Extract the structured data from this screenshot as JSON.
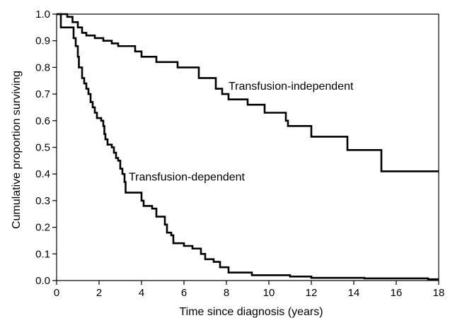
{
  "chart_data": {
    "type": "line",
    "title": "",
    "xlabel": "Time since diagnosis (years)",
    "ylabel": "Cumulative proportion surviving",
    "xlim": [
      0,
      18
    ],
    "ylim": [
      0.0,
      1.0
    ],
    "x_ticks": [
      "0",
      "2",
      "4",
      "6",
      "8",
      "10",
      "12",
      "14",
      "16",
      "18"
    ],
    "y_ticks": [
      "0.0",
      "0.1",
      "0.2",
      "0.3",
      "0.4",
      "0.5",
      "0.6",
      "0.7",
      "0.8",
      "0.9",
      "1.0"
    ],
    "grid": false,
    "legend": "none",
    "series": [
      {
        "name": "Transfusion-independent",
        "color": "#000000",
        "step": true,
        "points": [
          [
            0.0,
            1.0
          ],
          [
            0.5,
            0.99
          ],
          [
            0.75,
            0.97
          ],
          [
            1.0,
            0.95
          ],
          [
            1.2,
            0.93
          ],
          [
            1.4,
            0.92
          ],
          [
            1.8,
            0.91
          ],
          [
            2.2,
            0.9
          ],
          [
            2.6,
            0.89
          ],
          [
            2.9,
            0.88
          ],
          [
            3.7,
            0.86
          ],
          [
            4.0,
            0.84
          ],
          [
            4.7,
            0.82
          ],
          [
            5.7,
            0.8
          ],
          [
            6.7,
            0.76
          ],
          [
            7.5,
            0.72
          ],
          [
            7.8,
            0.7
          ],
          [
            8.1,
            0.68
          ],
          [
            9.0,
            0.66
          ],
          [
            9.8,
            0.63
          ],
          [
            10.8,
            0.6
          ],
          [
            10.9,
            0.58
          ],
          [
            12.0,
            0.54
          ],
          [
            13.7,
            0.49
          ],
          [
            15.3,
            0.41
          ],
          [
            18.0,
            0.41
          ]
        ]
      },
      {
        "name": "Transfusion-dependent",
        "color": "#000000",
        "step": true,
        "points": [
          [
            0.0,
            1.0
          ],
          [
            0.2,
            0.95
          ],
          [
            0.8,
            0.91
          ],
          [
            0.9,
            0.88
          ],
          [
            1.0,
            0.84
          ],
          [
            1.05,
            0.8
          ],
          [
            1.2,
            0.76
          ],
          [
            1.3,
            0.74
          ],
          [
            1.4,
            0.72
          ],
          [
            1.5,
            0.7
          ],
          [
            1.6,
            0.67
          ],
          [
            1.7,
            0.65
          ],
          [
            1.8,
            0.63
          ],
          [
            1.9,
            0.61
          ],
          [
            2.1,
            0.6
          ],
          [
            2.2,
            0.58
          ],
          [
            2.25,
            0.55
          ],
          [
            2.3,
            0.53
          ],
          [
            2.4,
            0.51
          ],
          [
            2.6,
            0.5
          ],
          [
            2.7,
            0.48
          ],
          [
            2.8,
            0.46
          ],
          [
            2.9,
            0.45
          ],
          [
            3.0,
            0.42
          ],
          [
            3.1,
            0.4
          ],
          [
            3.2,
            0.37
          ],
          [
            3.25,
            0.33
          ],
          [
            4.0,
            0.3
          ],
          [
            4.1,
            0.28
          ],
          [
            4.5,
            0.27
          ],
          [
            4.7,
            0.24
          ],
          [
            5.1,
            0.21
          ],
          [
            5.2,
            0.18
          ],
          [
            5.4,
            0.17
          ],
          [
            5.5,
            0.14
          ],
          [
            6.0,
            0.13
          ],
          [
            6.4,
            0.12
          ],
          [
            6.8,
            0.1
          ],
          [
            7.0,
            0.08
          ],
          [
            7.4,
            0.07
          ],
          [
            7.7,
            0.05
          ],
          [
            8.1,
            0.03
          ],
          [
            9.2,
            0.02
          ],
          [
            11.0,
            0.015
          ],
          [
            12.0,
            0.01
          ],
          [
            14.5,
            0.008
          ],
          [
            17.5,
            0.005
          ],
          [
            18.0,
            0.005
          ]
        ]
      }
    ],
    "annotations": [
      {
        "text": "Transfusion-independent",
        "x": 8.1,
        "y": 0.7,
        "series": 0
      },
      {
        "text": "Transfusion-dependent",
        "x": 3.4,
        "y": 0.36,
        "series": 1
      }
    ]
  }
}
